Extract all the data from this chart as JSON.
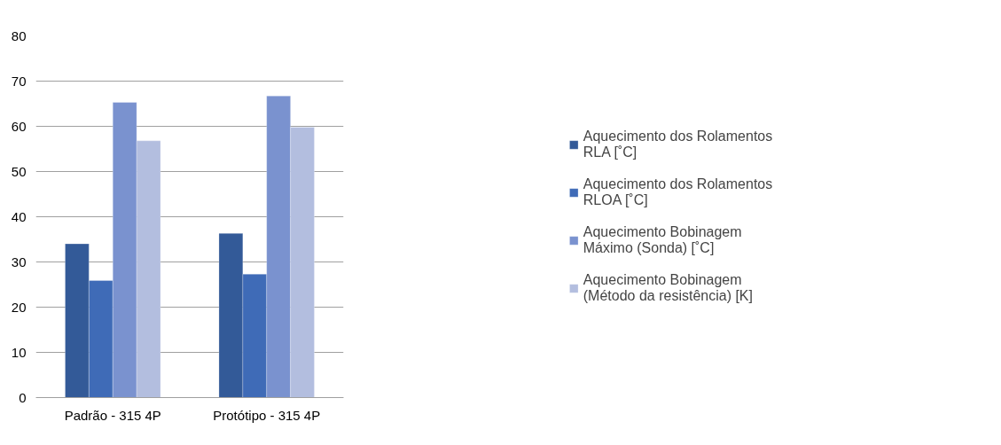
{
  "chart_data": {
    "type": "bar",
    "categories": [
      "Padrão - 315 4P",
      "Protótipo - 315 4P"
    ],
    "series": [
      {
        "name": "Aquecimento dos Rolamentos RLA [˚C]",
        "color": "#335a98",
        "values": [
          34.0,
          36.3
        ]
      },
      {
        "name": "Aquecimento dos Rolamentos RLOA [˚C]",
        "color": "#3f6bb7",
        "values": [
          25.9,
          27.3
        ]
      },
      {
        "name": "Aquecimento Bobinagem Máximo (Sonda) [˚C]",
        "color": "#7a92cf",
        "values": [
          65.3,
          66.7
        ]
      },
      {
        "name": "Aquecimento Bobinagem (Método da resistência) [K]",
        "color": "#b3bedf",
        "values": [
          56.8,
          59.8
        ]
      }
    ],
    "ylim": [
      0,
      80
    ],
    "yticks": [
      0,
      10,
      20,
      30,
      40,
      50,
      60,
      70,
      80
    ],
    "grid": "y",
    "legend": "right"
  }
}
